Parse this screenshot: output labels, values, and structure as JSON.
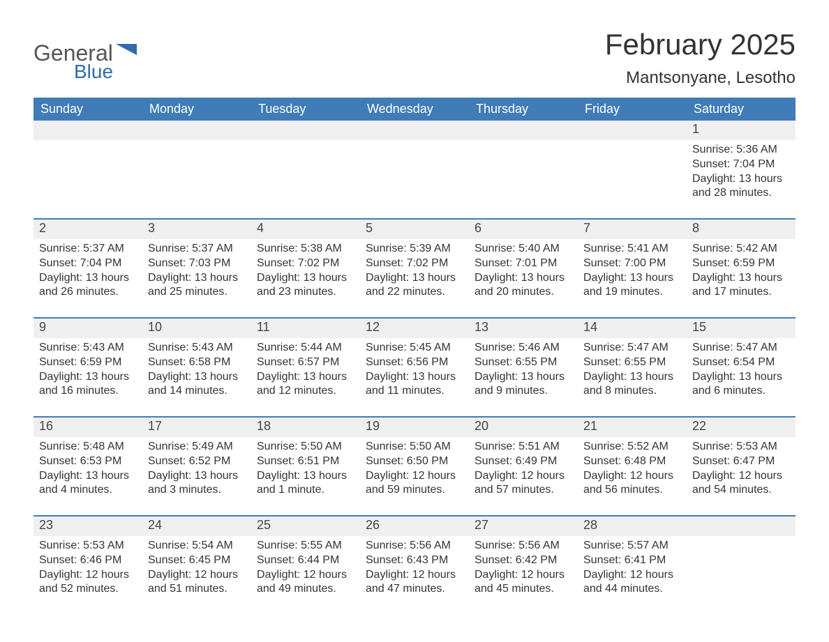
{
  "brand": {
    "part1": "General",
    "part2": "Blue",
    "text_color_1": "#555555",
    "text_color_2": "#2f6ca9",
    "flag_color": "#2f6ca9"
  },
  "header": {
    "title": "February 2025",
    "location": "Mantsonyane, Lesotho",
    "title_fontsize": 42,
    "location_fontsize": 24
  },
  "style": {
    "header_bg": "#3f7cb8",
    "header_fg": "#ffffff",
    "daynum_bg": "#efefef",
    "row_divider": "#3f7cb8",
    "body_fontsize": 16,
    "page_bg": "#ffffff"
  },
  "columns": [
    "Sunday",
    "Monday",
    "Tuesday",
    "Wednesday",
    "Thursday",
    "Friday",
    "Saturday"
  ],
  "weeks": [
    [
      {
        "day": null
      },
      {
        "day": null
      },
      {
        "day": null
      },
      {
        "day": null
      },
      {
        "day": null
      },
      {
        "day": null
      },
      {
        "day": 1,
        "sunrise": "Sunrise: 5:36 AM",
        "sunset": "Sunset: 7:04 PM",
        "daylight": "Daylight: 13 hours and 28 minutes."
      }
    ],
    [
      {
        "day": 2,
        "sunrise": "Sunrise: 5:37 AM",
        "sunset": "Sunset: 7:04 PM",
        "daylight": "Daylight: 13 hours and 26 minutes."
      },
      {
        "day": 3,
        "sunrise": "Sunrise: 5:37 AM",
        "sunset": "Sunset: 7:03 PM",
        "daylight": "Daylight: 13 hours and 25 minutes."
      },
      {
        "day": 4,
        "sunrise": "Sunrise: 5:38 AM",
        "sunset": "Sunset: 7:02 PM",
        "daylight": "Daylight: 13 hours and 23 minutes."
      },
      {
        "day": 5,
        "sunrise": "Sunrise: 5:39 AM",
        "sunset": "Sunset: 7:02 PM",
        "daylight": "Daylight: 13 hours and 22 minutes."
      },
      {
        "day": 6,
        "sunrise": "Sunrise: 5:40 AM",
        "sunset": "Sunset: 7:01 PM",
        "daylight": "Daylight: 13 hours and 20 minutes."
      },
      {
        "day": 7,
        "sunrise": "Sunrise: 5:41 AM",
        "sunset": "Sunset: 7:00 PM",
        "daylight": "Daylight: 13 hours and 19 minutes."
      },
      {
        "day": 8,
        "sunrise": "Sunrise: 5:42 AM",
        "sunset": "Sunset: 6:59 PM",
        "daylight": "Daylight: 13 hours and 17 minutes."
      }
    ],
    [
      {
        "day": 9,
        "sunrise": "Sunrise: 5:43 AM",
        "sunset": "Sunset: 6:59 PM",
        "daylight": "Daylight: 13 hours and 16 minutes."
      },
      {
        "day": 10,
        "sunrise": "Sunrise: 5:43 AM",
        "sunset": "Sunset: 6:58 PM",
        "daylight": "Daylight: 13 hours and 14 minutes."
      },
      {
        "day": 11,
        "sunrise": "Sunrise: 5:44 AM",
        "sunset": "Sunset: 6:57 PM",
        "daylight": "Daylight: 13 hours and 12 minutes."
      },
      {
        "day": 12,
        "sunrise": "Sunrise: 5:45 AM",
        "sunset": "Sunset: 6:56 PM",
        "daylight": "Daylight: 13 hours and 11 minutes."
      },
      {
        "day": 13,
        "sunrise": "Sunrise: 5:46 AM",
        "sunset": "Sunset: 6:55 PM",
        "daylight": "Daylight: 13 hours and 9 minutes."
      },
      {
        "day": 14,
        "sunrise": "Sunrise: 5:47 AM",
        "sunset": "Sunset: 6:55 PM",
        "daylight": "Daylight: 13 hours and 8 minutes."
      },
      {
        "day": 15,
        "sunrise": "Sunrise: 5:47 AM",
        "sunset": "Sunset: 6:54 PM",
        "daylight": "Daylight: 13 hours and 6 minutes."
      }
    ],
    [
      {
        "day": 16,
        "sunrise": "Sunrise: 5:48 AM",
        "sunset": "Sunset: 6:53 PM",
        "daylight": "Daylight: 13 hours and 4 minutes."
      },
      {
        "day": 17,
        "sunrise": "Sunrise: 5:49 AM",
        "sunset": "Sunset: 6:52 PM",
        "daylight": "Daylight: 13 hours and 3 minutes."
      },
      {
        "day": 18,
        "sunrise": "Sunrise: 5:50 AM",
        "sunset": "Sunset: 6:51 PM",
        "daylight": "Daylight: 13 hours and 1 minute."
      },
      {
        "day": 19,
        "sunrise": "Sunrise: 5:50 AM",
        "sunset": "Sunset: 6:50 PM",
        "daylight": "Daylight: 12 hours and 59 minutes."
      },
      {
        "day": 20,
        "sunrise": "Sunrise: 5:51 AM",
        "sunset": "Sunset: 6:49 PM",
        "daylight": "Daylight: 12 hours and 57 minutes."
      },
      {
        "day": 21,
        "sunrise": "Sunrise: 5:52 AM",
        "sunset": "Sunset: 6:48 PM",
        "daylight": "Daylight: 12 hours and 56 minutes."
      },
      {
        "day": 22,
        "sunrise": "Sunrise: 5:53 AM",
        "sunset": "Sunset: 6:47 PM",
        "daylight": "Daylight: 12 hours and 54 minutes."
      }
    ],
    [
      {
        "day": 23,
        "sunrise": "Sunrise: 5:53 AM",
        "sunset": "Sunset: 6:46 PM",
        "daylight": "Daylight: 12 hours and 52 minutes."
      },
      {
        "day": 24,
        "sunrise": "Sunrise: 5:54 AM",
        "sunset": "Sunset: 6:45 PM",
        "daylight": "Daylight: 12 hours and 51 minutes."
      },
      {
        "day": 25,
        "sunrise": "Sunrise: 5:55 AM",
        "sunset": "Sunset: 6:44 PM",
        "daylight": "Daylight: 12 hours and 49 minutes."
      },
      {
        "day": 26,
        "sunrise": "Sunrise: 5:56 AM",
        "sunset": "Sunset: 6:43 PM",
        "daylight": "Daylight: 12 hours and 47 minutes."
      },
      {
        "day": 27,
        "sunrise": "Sunrise: 5:56 AM",
        "sunset": "Sunset: 6:42 PM",
        "daylight": "Daylight: 12 hours and 45 minutes."
      },
      {
        "day": 28,
        "sunrise": "Sunrise: 5:57 AM",
        "sunset": "Sunset: 6:41 PM",
        "daylight": "Daylight: 12 hours and 44 minutes."
      },
      {
        "day": null
      }
    ]
  ]
}
